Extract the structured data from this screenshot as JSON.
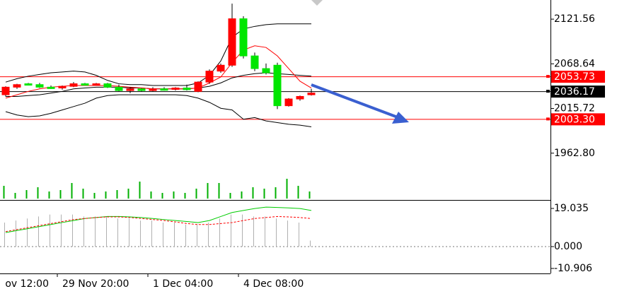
{
  "chart_data": [
    {
      "type": "candlestick",
      "categories": [
        null,
        null,
        null,
        null,
        null,
        "29 Nov 20:00",
        null,
        null,
        null,
        null,
        null,
        null,
        null,
        "1 Dec 04:00",
        null,
        null,
        null,
        null,
        null,
        null,
        null,
        "4 Dec 08:00",
        null,
        null,
        null,
        null,
        null,
        null
      ],
      "x_edge_label": "ov 12:00",
      "open": [
        2032,
        2041,
        2045,
        2044,
        2041,
        2040,
        2042,
        2045,
        2044,
        2045,
        2041,
        2037,
        2039,
        2037,
        2039,
        2039,
        2040,
        2036,
        2047,
        2060,
        2067,
        2122,
        2078,
        2063,
        2067,
        2019,
        2027,
        2032
      ],
      "high": [
        2042,
        2045,
        2046,
        2046,
        2043,
        2043,
        2047,
        2046,
        2046,
        2046,
        2044,
        2041,
        2040,
        2041,
        2041,
        2041,
        2044,
        2048,
        2062,
        2069,
        2140,
        2125,
        2082,
        2069,
        2070,
        2028,
        2031,
        2039
      ],
      "low": [
        2030,
        2039,
        2043,
        2040,
        2039,
        2038,
        2041,
        2043,
        2043,
        2040,
        2036,
        2034,
        2036,
        2036,
        2037,
        2037,
        2037,
        2035,
        2045,
        2058,
        2065,
        2075,
        2060,
        2056,
        2015,
        2018,
        2025,
        2031
      ],
      "close": [
        2041,
        2044,
        2044,
        2041,
        2040,
        2042,
        2045,
        2044,
        2045,
        2041,
        2037,
        2039,
        2037,
        2039,
        2038,
        2040,
        2038,
        2047,
        2060,
        2067,
        2122,
        2078,
        2063,
        2058,
        2019,
        2027,
        2030,
        2034
      ],
      "up_color": "#ff0000",
      "down_color": "#00e600",
      "series": [
        {
          "color": "#000000",
          "values": [
            2047,
            2051,
            2054,
            2056,
            2058,
            2059,
            2060,
            2059,
            2055,
            2049,
            2045,
            2044,
            2044,
            2043,
            2043,
            2043,
            2043,
            2046,
            2055,
            2072,
            2100,
            2110,
            2113,
            2115,
            2116,
            2116,
            2116,
            2116
          ]
        },
        {
          "color": "#000000",
          "values": [
            2030,
            2030,
            2031,
            2032,
            2034,
            2036,
            2039,
            2040,
            2041,
            2041,
            2041,
            2040,
            2040,
            2039,
            2039,
            2039,
            2039,
            2040,
            2042,
            2046,
            2052,
            2055,
            2057,
            2058,
            2057,
            2056,
            2055,
            2054
          ]
        },
        {
          "color": "#000000",
          "values": [
            2012,
            2008,
            2006,
            2007,
            2010,
            2014,
            2018,
            2022,
            2028,
            2031,
            2032,
            2032,
            2032,
            2032,
            2032,
            2032,
            2031,
            2028,
            2023,
            2016,
            2014,
            2003,
            2005,
            2001,
            1999,
            1997,
            1996,
            1994
          ]
        },
        {
          "color": "#ff0000",
          "values": [
            2028,
            2032,
            2036,
            2039,
            2041,
            2042,
            2043,
            2043,
            2043,
            2043,
            2042,
            2041,
            2040,
            2039,
            2039,
            2039,
            2039,
            2040,
            2046,
            2053,
            2070,
            2085,
            2090,
            2088,
            2078,
            2063,
            2048,
            2040
          ]
        }
      ],
      "volume": {
        "color": "#00b000",
        "ylim": [
          0,
          30
        ],
        "values": [
          18,
          8,
          12,
          16,
          10,
          12,
          22,
          14,
          8,
          10,
          12,
          14,
          24,
          10,
          8,
          10,
          8,
          14,
          22,
          22,
          8,
          10,
          16,
          14,
          16,
          28,
          18,
          10
        ]
      },
      "hlines": [
        {
          "value": 2053.73,
          "color": "#ff0000"
        },
        {
          "value": 2036.17,
          "color": "#000000"
        },
        {
          "value": 2003.3,
          "label": "2003.30",
          "color": "#ff0000"
        }
      ],
      "ylim": [
        1908.2,
        2144.24
      ],
      "yticks": [
        2121.56,
        2068.64,
        2015.72,
        {
          "value": 1962.8,
          "label": "1962.80"
        }
      ]
    },
    {
      "type": "macd",
      "ylim": [
        -13.4,
        21.85
      ],
      "yticks": [
        19.035,
        {
          "value": 0,
          "label": "0.000"
        },
        -10.906
      ],
      "histogram": {
        "color": "#b0b0b0",
        "values": [
          12,
          13,
          14,
          15,
          16,
          16,
          16,
          15,
          15,
          15,
          14,
          14,
          13,
          13,
          12,
          12,
          11,
          11,
          12,
          14,
          16,
          16,
          15,
          15,
          14,
          13,
          12,
          3
        ]
      },
      "series": [
        {
          "color": "#00cc00",
          "values": [
            7,
            8,
            9,
            10,
            11,
            12,
            13,
            14,
            14.5,
            15,
            15,
            14.8,
            14.5,
            14,
            13.5,
            13,
            12.5,
            12,
            13,
            15,
            17,
            18,
            19,
            19.7,
            19.5,
            19.3,
            19,
            18
          ]
        },
        {
          "color": "#ff0000",
          "dash": true,
          "values": [
            7.5,
            8.5,
            9.5,
            10.5,
            11.5,
            12.5,
            13.5,
            14,
            14.5,
            14.8,
            14.8,
            14.5,
            14,
            13.5,
            13,
            12.3,
            11.5,
            11,
            11,
            11.5,
            12,
            13,
            14,
            14.5,
            15,
            14.8,
            14.5,
            14
          ]
        }
      ],
      "zero_line": true
    }
  ]
}
